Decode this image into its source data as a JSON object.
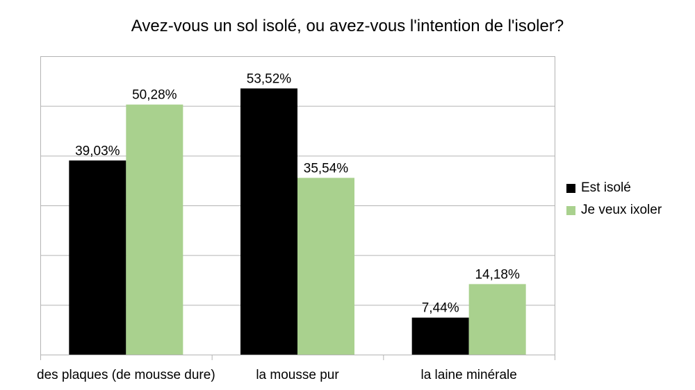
{
  "chart_data": {
    "type": "bar",
    "title": "Avez-vous un sol isolé, ou avez-vous l'intention de l'isoler?",
    "categories": [
      "des plaques (de mousse dure)",
      "la mousse pur",
      "la laine minérale"
    ],
    "series": [
      {
        "name": "Est isolé",
        "color": "#000000",
        "values": [
          39.03,
          53.52,
          7.44
        ],
        "labels": [
          "39,03%",
          "53,52%",
          "7,44%"
        ]
      },
      {
        "name": "Je veux ixoler",
        "color": "#a9d18e",
        "values": [
          50.28,
          35.54,
          14.18
        ],
        "labels": [
          "50,28%",
          "35,54%",
          "14,18%"
        ]
      }
    ],
    "ylim": [
      0,
      60
    ],
    "grid": true,
    "legend_position": "right"
  }
}
